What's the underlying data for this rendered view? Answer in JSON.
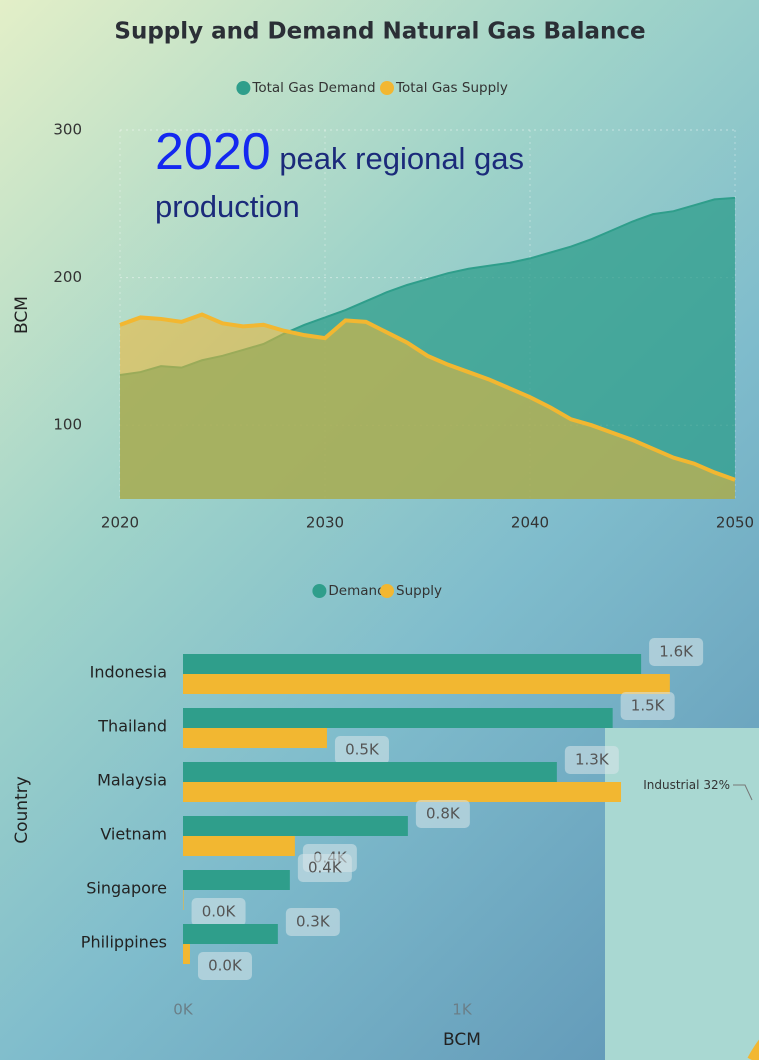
{
  "chart_data": [
    {
      "type": "area",
      "title": "Supply and Demand Natural Gas Balance",
      "y_label": "BCM",
      "annotations": [
        "2020",
        "peak regional gas production"
      ],
      "x": [
        2020,
        2021,
        2022,
        2023,
        2024,
        2025,
        2026,
        2027,
        2028,
        2029,
        2030,
        2031,
        2032,
        2033,
        2034,
        2035,
        2036,
        2037,
        2038,
        2039,
        2040,
        2041,
        2042,
        2043,
        2044,
        2045,
        2046,
        2047,
        2048,
        2049,
        2050
      ],
      "series": [
        {
          "name": "Total Gas Demand",
          "color": "#2f9e8b",
          "values": [
            134,
            136,
            140,
            139,
            144,
            147,
            151,
            155,
            162,
            168,
            173,
            178,
            184,
            190,
            195,
            199,
            203,
            206,
            208,
            210,
            213,
            217,
            221,
            226,
            232,
            238,
            243,
            245,
            249,
            253,
            254
          ]
        },
        {
          "name": "Total Gas Supply",
          "color": "#f2b731",
          "values": [
            168,
            173,
            172,
            170,
            175,
            169,
            167,
            168,
            164,
            161,
            159,
            171,
            170,
            163,
            156,
            147,
            141,
            136,
            131,
            125,
            119,
            112,
            104,
            100,
            95,
            90,
            84,
            78,
            74,
            68,
            63
          ]
        }
      ],
      "xlim": [
        2020,
        2050
      ],
      "xticks": [
        2020,
        2030,
        2040,
        2050
      ],
      "ylim": [
        50,
        300
      ],
      "yticks": [
        100,
        200,
        300
      ],
      "grid": true
    },
    {
      "type": "hbar",
      "x_label": "BCM",
      "y_label": "Country",
      "categories": [
        "Indonesia",
        "Thailand",
        "Malaysia",
        "Vietnam",
        "Singapore",
        "Philippines"
      ],
      "series": [
        {
          "name": "Demand",
          "color": "#2f9e8b",
          "values": [
            1642,
            1540,
            1340,
            806,
            383,
            340
          ],
          "value_labels": [
            "1.6K",
            "1.5K",
            "1.3K",
            "0.8K",
            "0.4K",
            "0.3K"
          ]
        },
        {
          "name": "Supply",
          "color": "#f2b731",
          "values": [
            1745,
            516,
            1570,
            401,
            2,
            25
          ],
          "value_labels": [
            null,
            "0.5K",
            null,
            "0.4K",
            "0.0K",
            "0.0K"
          ]
        }
      ],
      "xlim": [
        0,
        2000
      ],
      "xticks": [
        {
          "value": 0,
          "label": "0K"
        },
        {
          "value": 1000,
          "label": "1K"
        }
      ]
    },
    {
      "type": "pie",
      "categories": [
        "Industrial"
      ],
      "values": [
        32
      ],
      "value_labels": [
        "32%"
      ],
      "color": "#f2b731"
    }
  ]
}
